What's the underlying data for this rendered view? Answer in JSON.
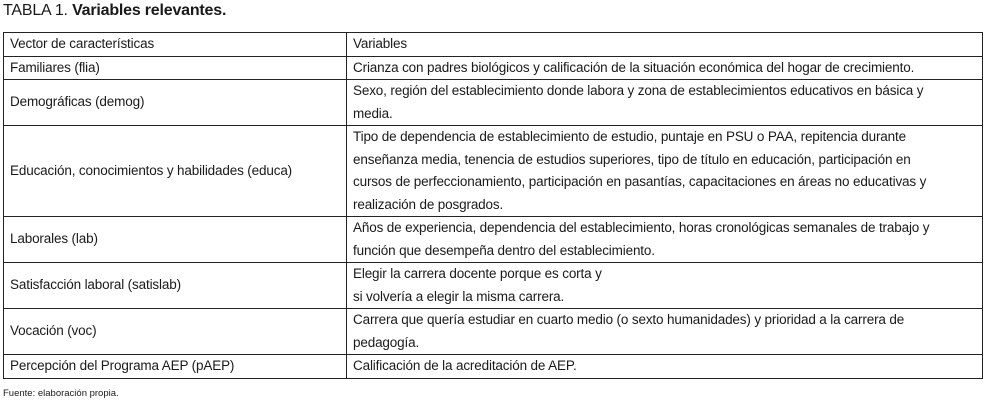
{
  "title": {
    "prefix": "TABLA 1.",
    "text": "Variables relevantes."
  },
  "table": {
    "headers": [
      "Vector de características",
      "Variables"
    ],
    "rows": [
      {
        "vector": "Familiares (flia)",
        "variables": [
          "Crianza con padres biológicos y calificación de la situación económica del hogar de crecimiento."
        ]
      },
      {
        "vector": "Demográficas (demog)",
        "variables": [
          "Sexo, región del establecimiento donde labora y zona de establecimientos educativos en básica y",
          "media."
        ]
      },
      {
        "vector": "Educación, conocimientos y habilidades (educa)",
        "variables": [
          "Tipo de dependencia de establecimiento de estudio, puntaje en PSU o PAA, repitencia durante",
          "enseñanza media, tenencia de estudios superiores, tipo de título en educación, participación en",
          "cursos de perfeccionamiento, participación en pasantías, capacitaciones en áreas no educativas y",
          "realización de posgrados."
        ]
      },
      {
        "vector": "Laborales (lab)",
        "variables": [
          "Años de experiencia, dependencia del establecimiento, horas cronológicas semanales de trabajo y",
          "función que desempeña dentro del establecimiento."
        ]
      },
      {
        "vector": "Satisfacción laboral (satislab)",
        "variables": [
          "Elegir la carrera docente porque es corta y",
          "si volvería a elegir la misma carrera."
        ]
      },
      {
        "vector": "Vocación (voc)",
        "variables": [
          "Carrera que quería estudiar en cuarto medio (o sexto humanidades) y prioridad a la carrera de",
          "pedagogía."
        ]
      },
      {
        "vector": "Percepción del Programa AEP (pAEP)",
        "variables": [
          "Calificación de la acreditación de AEP."
        ]
      }
    ]
  },
  "footer": "Fuente: elaboración propia."
}
